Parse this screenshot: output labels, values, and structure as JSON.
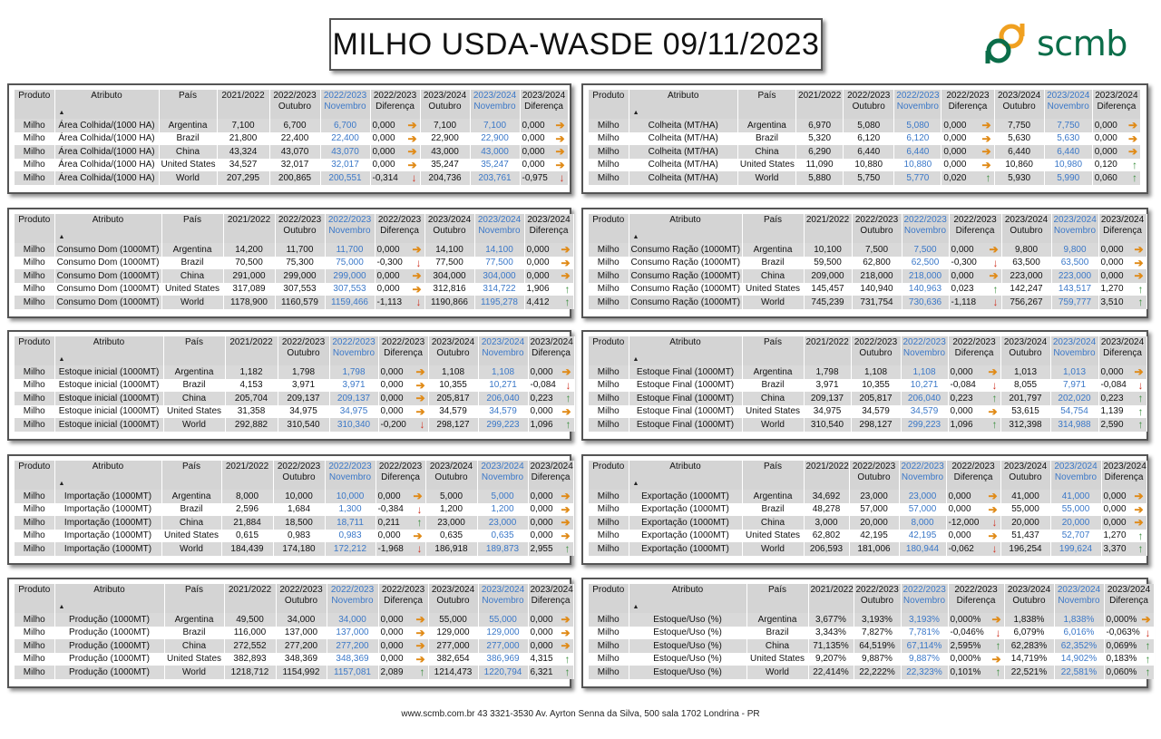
{
  "title": "MILHO USDA-WASDE 09/11/2023",
  "logo_text": "scmb",
  "footer": "www.scmb.com.br  43 3321-3530 Av. Ayrton Senna da Silva, 500 sala 1702 Londrina - PR",
  "headers": {
    "produto": "Produto",
    "atributo": "Atributo",
    "pais": "País",
    "y2122": "2021/2022",
    "y2223o_1": "2022/2023",
    "y2223o_2": "Outubro",
    "y2223n_1": "2022/2023",
    "y2223n_2": "Novembro",
    "d2223_1": "2022/2023",
    "d2223_2": "Diferença",
    "y2324o_1": "2023/2024",
    "y2324o_2": "Outubro",
    "y2324n_1": "2023/2024",
    "y2324n_2": "Novembro",
    "d2324_1": "2023/2024",
    "d2324_2": "Diferença"
  },
  "tables": [
    {
      "rows": [
        [
          "Milho",
          "Área Colhida/(1000 HA)",
          "Argentina",
          "7,100",
          "6,700",
          "6,700",
          "0,000",
          "right",
          "7,100",
          "7,100",
          "0,000",
          "right"
        ],
        [
          "Milho",
          "Área Colhida/(1000 HA)",
          "Brazil",
          "21,800",
          "22,400",
          "22,400",
          "0,000",
          "right",
          "22,900",
          "22,900",
          "0,000",
          "right"
        ],
        [
          "Milho",
          "Área Colhida/(1000 HA)",
          "China",
          "43,324",
          "43,070",
          "43,070",
          "0,000",
          "right",
          "43,000",
          "43,000",
          "0,000",
          "right"
        ],
        [
          "Milho",
          "Área Colhida/(1000 HA)",
          "United States",
          "34,527",
          "32,017",
          "32,017",
          "0,000",
          "right",
          "35,247",
          "35,247",
          "0,000",
          "right"
        ],
        [
          "Milho",
          "Área Colhida/(1000 HA)",
          "World",
          "207,295",
          "200,865",
          "200,551",
          "-0,314",
          "down",
          "204,736",
          "203,761",
          "-0,975",
          "down"
        ]
      ]
    },
    {
      "rows": [
        [
          "Milho",
          "Colheita (MT/HA)",
          "Argentina",
          "6,970",
          "5,080",
          "5,080",
          "0,000",
          "right",
          "7,750",
          "7,750",
          "0,000",
          "right"
        ],
        [
          "Milho",
          "Colheita (MT/HA)",
          "Brazil",
          "5,320",
          "6,120",
          "6,120",
          "0,000",
          "right",
          "5,630",
          "5,630",
          "0,000",
          "right"
        ],
        [
          "Milho",
          "Colheita (MT/HA)",
          "China",
          "6,290",
          "6,440",
          "6,440",
          "0,000",
          "right",
          "6,440",
          "6,440",
          "0,000",
          "right"
        ],
        [
          "Milho",
          "Colheita (MT/HA)",
          "United States",
          "11,090",
          "10,880",
          "10,880",
          "0,000",
          "right",
          "10,860",
          "10,980",
          "0,120",
          "up"
        ],
        [
          "Milho",
          "Colheita (MT/HA)",
          "World",
          "5,880",
          "5,750",
          "5,770",
          "0,020",
          "up",
          "5,930",
          "5,990",
          "0,060",
          "up"
        ]
      ]
    },
    {
      "rows": [
        [
          "Milho",
          "Consumo Dom (1000MT)",
          "Argentina",
          "14,200",
          "11,700",
          "11,700",
          "0,000",
          "right",
          "14,100",
          "14,100",
          "0,000",
          "right"
        ],
        [
          "Milho",
          "Consumo Dom (1000MT)",
          "Brazil",
          "70,500",
          "75,300",
          "75,000",
          "-0,300",
          "down",
          "77,500",
          "77,500",
          "0,000",
          "right"
        ],
        [
          "Milho",
          "Consumo Dom (1000MT)",
          "China",
          "291,000",
          "299,000",
          "299,000",
          "0,000",
          "right",
          "304,000",
          "304,000",
          "0,000",
          "right"
        ],
        [
          "Milho",
          "Consumo Dom (1000MT)",
          "United States",
          "317,089",
          "307,553",
          "307,553",
          "0,000",
          "right",
          "312,816",
          "314,722",
          "1,906",
          "up"
        ],
        [
          "Milho",
          "Consumo Dom (1000MT)",
          "World",
          "1178,900",
          "1160,579",
          "1159,466",
          "-1,113",
          "down",
          "1190,866",
          "1195,278",
          "4,412",
          "up"
        ]
      ]
    },
    {
      "rows": [
        [
          "Milho",
          "Consumo Ração (1000MT)",
          "Argentina",
          "10,100",
          "7,500",
          "7,500",
          "0,000",
          "right",
          "9,800",
          "9,800",
          "0,000",
          "right"
        ],
        [
          "Milho",
          "Consumo Ração (1000MT)",
          "Brazil",
          "59,500",
          "62,800",
          "62,500",
          "-0,300",
          "down",
          "63,500",
          "63,500",
          "0,000",
          "right"
        ],
        [
          "Milho",
          "Consumo Ração (1000MT)",
          "China",
          "209,000",
          "218,000",
          "218,000",
          "0,000",
          "right",
          "223,000",
          "223,000",
          "0,000",
          "right"
        ],
        [
          "Milho",
          "Consumo Ração (1000MT)",
          "United States",
          "145,457",
          "140,940",
          "140,963",
          "0,023",
          "up",
          "142,247",
          "143,517",
          "1,270",
          "up"
        ],
        [
          "Milho",
          "Consumo Ração (1000MT)",
          "World",
          "745,239",
          "731,754",
          "730,636",
          "-1,118",
          "down",
          "756,267",
          "759,777",
          "3,510",
          "up"
        ]
      ]
    },
    {
      "rows": [
        [
          "Milho",
          "Estoque inicial (1000MT)",
          "Argentina",
          "1,182",
          "1,798",
          "1,798",
          "0,000",
          "right",
          "1,108",
          "1,108",
          "0,000",
          "right"
        ],
        [
          "Milho",
          "Estoque inicial (1000MT)",
          "Brazil",
          "4,153",
          "3,971",
          "3,971",
          "0,000",
          "right",
          "10,355",
          "10,271",
          "-0,084",
          "down"
        ],
        [
          "Milho",
          "Estoque inicial (1000MT)",
          "China",
          "205,704",
          "209,137",
          "209,137",
          "0,000",
          "right",
          "205,817",
          "206,040",
          "0,223",
          "up"
        ],
        [
          "Milho",
          "Estoque inicial (1000MT)",
          "United States",
          "31,358",
          "34,975",
          "34,975",
          "0,000",
          "right",
          "34,579",
          "34,579",
          "0,000",
          "right"
        ],
        [
          "Milho",
          "Estoque inicial (1000MT)",
          "World",
          "292,882",
          "310,540",
          "310,340",
          "-0,200",
          "down",
          "298,127",
          "299,223",
          "1,096",
          "up"
        ]
      ]
    },
    {
      "rows": [
        [
          "Milho",
          "Estoque Final (1000MT)",
          "Argentina",
          "1,798",
          "1,108",
          "1,108",
          "0,000",
          "right",
          "1,013",
          "1,013",
          "0,000",
          "right"
        ],
        [
          "Milho",
          "Estoque Final (1000MT)",
          "Brazil",
          "3,971",
          "10,355",
          "10,271",
          "-0,084",
          "down",
          "8,055",
          "7,971",
          "-0,084",
          "down"
        ],
        [
          "Milho",
          "Estoque Final (1000MT)",
          "China",
          "209,137",
          "205,817",
          "206,040",
          "0,223",
          "up",
          "201,797",
          "202,020",
          "0,223",
          "up"
        ],
        [
          "Milho",
          "Estoque Final (1000MT)",
          "United States",
          "34,975",
          "34,579",
          "34,579",
          "0,000",
          "right",
          "53,615",
          "54,754",
          "1,139",
          "up"
        ],
        [
          "Milho",
          "Estoque Final (1000MT)",
          "World",
          "310,540",
          "298,127",
          "299,223",
          "1,096",
          "up",
          "312,398",
          "314,988",
          "2,590",
          "up"
        ]
      ]
    },
    {
      "rows": [
        [
          "Milho",
          "Importação (1000MT)",
          "Argentina",
          "8,000",
          "10,000",
          "10,000",
          "0,000",
          "right",
          "5,000",
          "5,000",
          "0,000",
          "right"
        ],
        [
          "Milho",
          "Importação (1000MT)",
          "Brazil",
          "2,596",
          "1,684",
          "1,300",
          "-0,384",
          "down",
          "1,200",
          "1,200",
          "0,000",
          "right"
        ],
        [
          "Milho",
          "Importação (1000MT)",
          "China",
          "21,884",
          "18,500",
          "18,711",
          "0,211",
          "up",
          "23,000",
          "23,000",
          "0,000",
          "right"
        ],
        [
          "Milho",
          "Importação (1000MT)",
          "United States",
          "0,615",
          "0,983",
          "0,983",
          "0,000",
          "right",
          "0,635",
          "0,635",
          "0,000",
          "right"
        ],
        [
          "Milho",
          "Importação (1000MT)",
          "World",
          "184,439",
          "174,180",
          "172,212",
          "-1,968",
          "down",
          "186,918",
          "189,873",
          "2,955",
          "up"
        ]
      ]
    },
    {
      "rows": [
        [
          "Milho",
          "Exportação (1000MT)",
          "Argentina",
          "34,692",
          "23,000",
          "23,000",
          "0,000",
          "right",
          "41,000",
          "41,000",
          "0,000",
          "right"
        ],
        [
          "Milho",
          "Exportação (1000MT)",
          "Brazil",
          "48,278",
          "57,000",
          "57,000",
          "0,000",
          "right",
          "55,000",
          "55,000",
          "0,000",
          "right"
        ],
        [
          "Milho",
          "Exportação (1000MT)",
          "China",
          "3,000",
          "20,000",
          "8,000",
          "-12,000",
          "down",
          "20,000",
          "20,000",
          "0,000",
          "right"
        ],
        [
          "Milho",
          "Exportação (1000MT)",
          "United States",
          "62,802",
          "42,195",
          "42,195",
          "0,000",
          "right",
          "51,437",
          "52,707",
          "1,270",
          "up"
        ],
        [
          "Milho",
          "Exportação (1000MT)",
          "World",
          "206,593",
          "181,006",
          "180,944",
          "-0,062",
          "down",
          "196,254",
          "199,624",
          "3,370",
          "up"
        ]
      ]
    },
    {
      "rows": [
        [
          "Milho",
          "Produção (1000MT)",
          "Argentina",
          "49,500",
          "34,000",
          "34,000",
          "0,000",
          "right",
          "55,000",
          "55,000",
          "0,000",
          "right"
        ],
        [
          "Milho",
          "Produção (1000MT)",
          "Brazil",
          "116,000",
          "137,000",
          "137,000",
          "0,000",
          "right",
          "129,000",
          "129,000",
          "0,000",
          "right"
        ],
        [
          "Milho",
          "Produção (1000MT)",
          "China",
          "272,552",
          "277,200",
          "277,200",
          "0,000",
          "right",
          "277,000",
          "277,000",
          "0,000",
          "right"
        ],
        [
          "Milho",
          "Produção (1000MT)",
          "United States",
          "382,893",
          "348,369",
          "348,369",
          "0,000",
          "right",
          "382,654",
          "386,969",
          "4,315",
          "up"
        ],
        [
          "Milho",
          "Produção (1000MT)",
          "World",
          "1218,712",
          "1154,992",
          "1157,081",
          "2,089",
          "up",
          "1214,473",
          "1220,794",
          "6,321",
          "up"
        ]
      ]
    },
    {
      "rows": [
        [
          "Milho",
          "Estoque/Uso (%)",
          "Argentina",
          "3,677%",
          "3,193%",
          "3,193%",
          "0,000%",
          "right",
          "1,838%",
          "1,838%",
          "0,000%",
          "right"
        ],
        [
          "Milho",
          "Estoque/Uso (%)",
          "Brazil",
          "3,343%",
          "7,827%",
          "7,781%",
          "-0,046%",
          "down",
          "6,079%",
          "6,016%",
          "-0,063%",
          "down"
        ],
        [
          "Milho",
          "Estoque/Uso (%)",
          "China",
          "71,135%",
          "64,519%",
          "67,114%",
          "2,595%",
          "up",
          "62,283%",
          "62,352%",
          "0,069%",
          "up"
        ],
        [
          "Milho",
          "Estoque/Uso (%)",
          "United States",
          "9,207%",
          "9,887%",
          "9,887%",
          "0,000%",
          "right",
          "14,719%",
          "14,902%",
          "0,183%",
          "up"
        ],
        [
          "Milho",
          "Estoque/Uso (%)",
          "World",
          "22,414%",
          "22,222%",
          "22,323%",
          "0,101%",
          "up",
          "22,521%",
          "22,581%",
          "0,060%",
          "up"
        ]
      ]
    }
  ]
}
